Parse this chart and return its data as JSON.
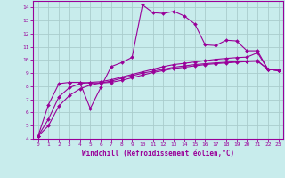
{
  "xlabel": "Windchill (Refroidissement éolien,°C)",
  "background_color": "#c8ecec",
  "line_color": "#990099",
  "grid_color": "#aacccc",
  "xlim": [
    -0.5,
    23.5
  ],
  "ylim": [
    4,
    14.5
  ],
  "xticks": [
    0,
    1,
    2,
    3,
    4,
    5,
    6,
    7,
    8,
    9,
    10,
    11,
    12,
    13,
    14,
    15,
    16,
    17,
    18,
    19,
    20,
    21,
    22,
    23
  ],
  "yticks": [
    4,
    5,
    6,
    7,
    8,
    9,
    10,
    11,
    12,
    13,
    14
  ],
  "curves": [
    {
      "x": [
        0,
        1,
        2,
        3,
        4,
        5,
        6,
        7,
        8,
        9,
        10,
        11,
        12,
        13,
        14,
        15,
        16,
        17,
        18,
        19,
        20,
        21,
        22,
        23
      ],
      "y": [
        4.2,
        6.6,
        8.2,
        8.3,
        8.3,
        6.3,
        7.9,
        9.5,
        9.8,
        10.2,
        14.2,
        13.6,
        13.55,
        13.7,
        13.35,
        12.75,
        11.15,
        11.1,
        11.5,
        11.45,
        10.7,
        10.7,
        9.3,
        9.2
      ]
    },
    {
      "x": [
        3,
        4,
        5,
        6,
        7,
        8,
        9,
        10,
        11,
        12,
        13,
        14,
        15,
        16,
        17,
        18,
        19,
        20,
        21,
        22,
        23
      ],
      "y": [
        8.3,
        8.3,
        8.25,
        8.25,
        8.3,
        8.45,
        8.65,
        8.85,
        9.05,
        9.2,
        9.35,
        9.45,
        9.55,
        9.65,
        9.72,
        9.78,
        9.83,
        9.88,
        9.9,
        9.3,
        9.2
      ]
    },
    {
      "x": [
        0,
        1,
        2,
        3,
        4,
        5,
        6,
        7,
        8,
        9,
        10,
        11,
        12,
        13,
        14,
        15,
        16,
        17,
        18,
        19,
        20,
        21,
        22,
        23
      ],
      "y": [
        4.2,
        5.5,
        7.2,
        7.9,
        8.2,
        8.3,
        8.35,
        8.5,
        8.7,
        8.9,
        9.1,
        9.3,
        9.5,
        9.65,
        9.75,
        9.85,
        9.95,
        10.05,
        10.12,
        10.18,
        10.22,
        10.55,
        9.3,
        9.2
      ]
    },
    {
      "x": [
        0,
        1,
        2,
        3,
        4,
        5,
        6,
        7,
        8,
        9,
        10,
        11,
        12,
        13,
        14,
        15,
        16,
        17,
        18,
        19,
        20,
        21,
        22,
        23
      ],
      "y": [
        4.2,
        5.0,
        6.5,
        7.3,
        7.8,
        8.1,
        8.25,
        8.4,
        8.6,
        8.8,
        9.0,
        9.15,
        9.3,
        9.45,
        9.55,
        9.65,
        9.72,
        9.78,
        9.83,
        9.88,
        9.92,
        9.95,
        9.3,
        9.2
      ]
    }
  ]
}
